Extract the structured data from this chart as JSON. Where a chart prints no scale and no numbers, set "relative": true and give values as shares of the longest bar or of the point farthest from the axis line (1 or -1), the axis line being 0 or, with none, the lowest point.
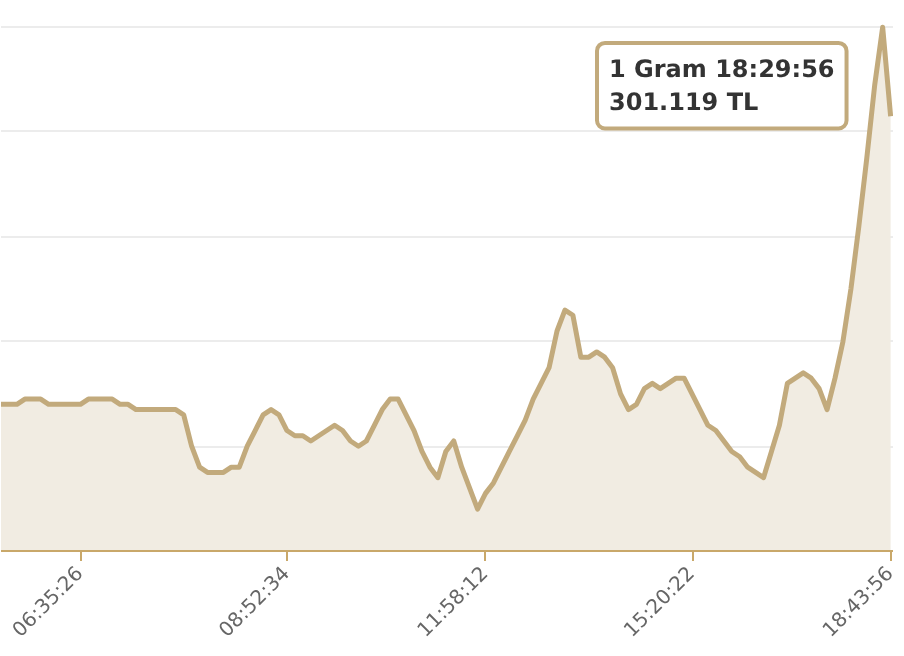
{
  "chart_data": {
    "type": "area",
    "relative": true,
    "grid": "y",
    "marker": "none",
    "color": "#c2aa7c",
    "categories": [
      null,
      null,
      null,
      null,
      null,
      null,
      null,
      null,
      null,
      null,
      "06:35:26",
      null,
      null,
      null,
      null,
      null,
      null,
      null,
      null,
      null,
      null,
      null,
      null,
      null,
      null,
      null,
      null,
      null,
      null,
      null,
      null,
      null,
      null,
      null,
      null,
      null,
      "08:52:34",
      null,
      null,
      null,
      null,
      null,
      null,
      null,
      null,
      null,
      null,
      null,
      null,
      null,
      null,
      null,
      null,
      null,
      null,
      null,
      null,
      null,
      null,
      null,
      null,
      "11:58:12",
      null,
      null,
      null,
      null,
      null,
      null,
      null,
      null,
      null,
      null,
      null,
      null,
      null,
      null,
      null,
      null,
      null,
      null,
      null,
      null,
      null,
      null,
      null,
      null,
      null,
      "15:20:22",
      null,
      null,
      null,
      null,
      null,
      null,
      null,
      null,
      null,
      null,
      null,
      null,
      null,
      null,
      null,
      null,
      null,
      null,
      null,
      null,
      null,
      null,
      null,
      null,
      "18:43:56"
    ],
    "values": [
      0.28,
      0.28,
      0.28,
      0.29,
      0.29,
      0.29,
      0.28,
      0.28,
      0.28,
      0.28,
      0.28,
      0.29,
      0.29,
      0.29,
      0.29,
      0.28,
      0.28,
      0.27,
      0.27,
      0.27,
      0.27,
      0.27,
      0.27,
      0.26,
      0.2,
      0.16,
      0.15,
      0.15,
      0.15,
      0.16,
      0.16,
      0.2,
      0.23,
      0.26,
      0.27,
      0.26,
      0.23,
      0.22,
      0.22,
      0.21,
      0.22,
      0.23,
      0.24,
      0.23,
      0.21,
      0.2,
      0.21,
      0.24,
      0.27,
      0.29,
      0.29,
      0.26,
      0.23,
      0.19,
      0.16,
      0.14,
      0.19,
      0.21,
      0.16,
      0.12,
      0.08,
      0.11,
      0.13,
      0.16,
      0.19,
      0.22,
      0.25,
      0.29,
      0.32,
      0.35,
      0.42,
      0.46,
      0.45,
      0.37,
      0.37,
      0.38,
      0.37,
      0.35,
      0.3,
      0.27,
      0.28,
      0.31,
      0.32,
      0.31,
      0.32,
      0.33,
      0.33,
      0.3,
      0.27,
      0.24,
      0.23,
      0.21,
      0.19,
      0.18,
      0.16,
      0.15,
      0.14,
      0.19,
      0.24,
      0.32,
      0.33,
      0.34,
      0.33,
      0.31,
      0.27,
      0.33,
      0.4,
      0.5,
      0.62,
      0.75,
      0.89,
      1,
      0.83
    ],
    "annotations": [
      "1 Gram 18:29:56",
      "301.119 TL"
    ]
  }
}
